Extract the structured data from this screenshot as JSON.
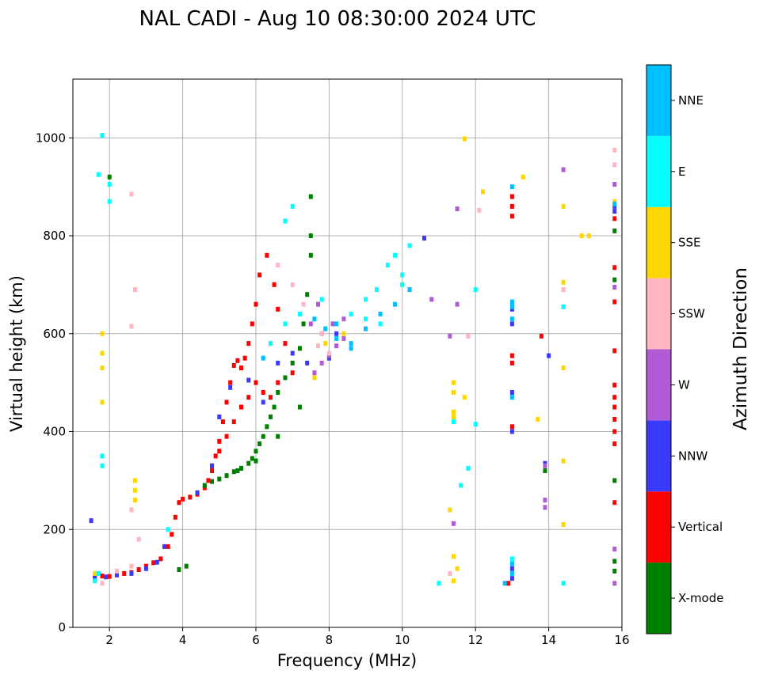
{
  "chart_data": {
    "type": "scatter",
    "title": "NAL CADI - Aug 10 08:30:00 2024 UTC",
    "xlabel": "Frequency (MHz)",
    "ylabel": "Virtual height (km)",
    "xlim": [
      1,
      16
    ],
    "ylim": [
      0,
      1120
    ],
    "xticks": [
      2,
      4,
      6,
      8,
      10,
      12,
      14,
      16
    ],
    "yticks": [
      0,
      200,
      400,
      600,
      800,
      1000
    ],
    "grid": true,
    "colorbar": {
      "label": "Azimuth Direction",
      "categories": [
        {
          "name": "X-mode",
          "color": "#008000"
        },
        {
          "name": "Vertical",
          "color": "#ff0000"
        },
        {
          "name": "NNW",
          "color": "#3a3aff"
        },
        {
          "name": "W",
          "color": "#b05ad6"
        },
        {
          "name": "SSW",
          "color": "#ffb6c1"
        },
        {
          "name": "SSE",
          "color": "#ffd700"
        },
        {
          "name": "E",
          "color": "#00ffff"
        },
        {
          "name": "NNE",
          "color": "#00bfff"
        }
      ]
    },
    "series": [
      {
        "name": "Vertical",
        "points": [
          [
            1.6,
            103
          ],
          [
            1.8,
            105
          ],
          [
            2.0,
            104
          ],
          [
            2.2,
            108
          ],
          [
            2.4,
            110
          ],
          [
            2.6,
            112
          ],
          [
            2.8,
            118
          ],
          [
            3.0,
            125
          ],
          [
            3.2,
            132
          ],
          [
            3.4,
            140
          ],
          [
            3.6,
            165
          ],
          [
            3.7,
            190
          ],
          [
            3.8,
            225
          ],
          [
            3.9,
            255
          ],
          [
            4.0,
            262
          ],
          [
            4.2,
            266
          ],
          [
            4.4,
            272
          ],
          [
            4.6,
            285
          ],
          [
            4.7,
            300
          ],
          [
            4.8,
            320
          ],
          [
            4.9,
            350
          ],
          [
            5.0,
            380
          ],
          [
            5.1,
            420
          ],
          [
            5.2,
            460
          ],
          [
            5.3,
            500
          ],
          [
            5.4,
            535
          ],
          [
            5.5,
            545
          ],
          [
            5.6,
            530
          ],
          [
            5.7,
            550
          ],
          [
            5.8,
            580
          ],
          [
            5.9,
            620
          ],
          [
            6.0,
            660
          ],
          [
            6.1,
            720
          ],
          [
            6.3,
            760
          ],
          [
            6.5,
            700
          ],
          [
            6.6,
            650
          ],
          [
            6.8,
            580
          ],
          [
            7.0,
            520
          ],
          [
            4.8,
            330
          ],
          [
            5.0,
            360
          ],
          [
            5.2,
            390
          ],
          [
            5.4,
            420
          ],
          [
            5.6,
            450
          ],
          [
            5.8,
            470
          ],
          [
            6.0,
            500
          ],
          [
            6.2,
            480
          ],
          [
            6.4,
            470
          ],
          [
            6.6,
            500
          ],
          [
            13.0,
            840
          ],
          [
            13.0,
            860
          ],
          [
            13.0,
            880
          ],
          [
            13.0,
            540
          ],
          [
            13.0,
            555
          ],
          [
            13.0,
            410
          ],
          [
            15.8,
            255
          ],
          [
            15.8,
            375
          ],
          [
            15.8,
            400
          ],
          [
            15.8,
            425
          ],
          [
            15.8,
            450
          ],
          [
            15.8,
            470
          ],
          [
            15.8,
            495
          ],
          [
            15.8,
            565
          ],
          [
            15.8,
            665
          ],
          [
            15.8,
            735
          ],
          [
            15.8,
            835
          ],
          [
            13.8,
            595
          ],
          [
            12.9,
            90
          ]
        ]
      },
      {
        "name": "X-mode",
        "points": [
          [
            4.6,
            290
          ],
          [
            4.8,
            298
          ],
          [
            5.0,
            303
          ],
          [
            5.2,
            310
          ],
          [
            5.4,
            318
          ],
          [
            5.6,
            325
          ],
          [
            5.8,
            335
          ],
          [
            5.9,
            345
          ],
          [
            6.0,
            360
          ],
          [
            6.1,
            375
          ],
          [
            6.2,
            390
          ],
          [
            6.3,
            410
          ],
          [
            6.4,
            430
          ],
          [
            6.5,
            450
          ],
          [
            6.6,
            480
          ],
          [
            6.8,
            510
          ],
          [
            7.0,
            540
          ],
          [
            7.2,
            570
          ],
          [
            7.3,
            620
          ],
          [
            7.4,
            680
          ],
          [
            7.5,
            760
          ],
          [
            7.5,
            800
          ],
          [
            7.5,
            880
          ],
          [
            5.5,
            320
          ],
          [
            6.0,
            340
          ],
          [
            6.6,
            390
          ],
          [
            7.2,
            450
          ],
          [
            13.9,
            320
          ],
          [
            15.8,
            115
          ],
          [
            15.8,
            135
          ],
          [
            15.8,
            300
          ],
          [
            15.8,
            810
          ],
          [
            15.8,
            710
          ],
          [
            2.0,
            920
          ],
          [
            3.9,
            118
          ],
          [
            4.1,
            125
          ]
        ]
      },
      {
        "name": "NNW",
        "points": [
          [
            1.6,
            100
          ],
          [
            1.9,
            103
          ],
          [
            2.2,
            107
          ],
          [
            2.6,
            110
          ],
          [
            3.0,
            120
          ],
          [
            3.3,
            133
          ],
          [
            3.5,
            165
          ],
          [
            4.4,
            275
          ],
          [
            4.8,
            330
          ],
          [
            5.0,
            430
          ],
          [
            5.3,
            490
          ],
          [
            5.8,
            505
          ],
          [
            6.2,
            460
          ],
          [
            6.6,
            540
          ],
          [
            7.0,
            560
          ],
          [
            7.4,
            540
          ],
          [
            8.0,
            550
          ],
          [
            8.2,
            600
          ],
          [
            10.6,
            795
          ],
          [
            13.0,
            400
          ],
          [
            13.0,
            620
          ],
          [
            13.0,
            650
          ],
          [
            13.0,
            480
          ],
          [
            13.0,
            100
          ],
          [
            13.0,
            120
          ],
          [
            14.0,
            555
          ],
          [
            15.8,
            850
          ],
          [
            15.8,
            860
          ],
          [
            13.9,
            335
          ],
          [
            1.5,
            218
          ]
        ]
      },
      {
        "name": "W",
        "points": [
          [
            7.6,
            520
          ],
          [
            7.8,
            540
          ],
          [
            8.0,
            555
          ],
          [
            8.2,
            575
          ],
          [
            8.4,
            590
          ],
          [
            7.8,
            600
          ],
          [
            8.1,
            620
          ],
          [
            8.4,
            630
          ],
          [
            7.5,
            620
          ],
          [
            11.3,
            595
          ],
          [
            10.8,
            670
          ],
          [
            11.5,
            660
          ],
          [
            13.9,
            245
          ],
          [
            13.9,
            260
          ],
          [
            13.9,
            330
          ],
          [
            14.4,
            935
          ],
          [
            15.8,
            905
          ],
          [
            15.8,
            695
          ],
          [
            15.8,
            90
          ],
          [
            15.8,
            160
          ],
          [
            11.4,
            212
          ],
          [
            11.5,
            855
          ],
          [
            7.2,
            640
          ],
          [
            7.7,
            660
          ]
        ]
      },
      {
        "name": "SSW",
        "points": [
          [
            1.8,
            90
          ],
          [
            2.2,
            115
          ],
          [
            2.6,
            125
          ],
          [
            2.8,
            180
          ],
          [
            2.6,
            240
          ],
          [
            2.7,
            690
          ],
          [
            2.6,
            615
          ],
          [
            2.6,
            885
          ],
          [
            6.6,
            740
          ],
          [
            7.0,
            700
          ],
          [
            7.3,
            660
          ],
          [
            7.8,
            600
          ],
          [
            8.0,
            560
          ],
          [
            11.3,
            110
          ],
          [
            11.8,
            595
          ],
          [
            12.1,
            852
          ],
          [
            15.8,
            945
          ],
          [
            15.8,
            975
          ],
          [
            14.4,
            690
          ],
          [
            7.7,
            575
          ]
        ]
      },
      {
        "name": "SSE",
        "points": [
          [
            1.6,
            110
          ],
          [
            1.8,
            530
          ],
          [
            1.8,
            560
          ],
          [
            1.8,
            600
          ],
          [
            1.8,
            460
          ],
          [
            2.7,
            300
          ],
          [
            2.7,
            280
          ],
          [
            2.7,
            260
          ],
          [
            7.6,
            510
          ],
          [
            7.9,
            580
          ],
          [
            8.4,
            600
          ],
          [
            11.3,
            240
          ],
          [
            11.4,
            145
          ],
          [
            11.4,
            440
          ],
          [
            11.4,
            500
          ],
          [
            11.4,
            480
          ],
          [
            11.4,
            430
          ],
          [
            11.7,
            470
          ],
          [
            11.7,
            998
          ],
          [
            12.2,
            890
          ],
          [
            13.3,
            920
          ],
          [
            13.7,
            425
          ],
          [
            14.4,
            860
          ],
          [
            14.4,
            340
          ],
          [
            14.4,
            530
          ],
          [
            14.4,
            705
          ],
          [
            14.4,
            210
          ],
          [
            14.9,
            800
          ],
          [
            15.1,
            800
          ],
          [
            15.8,
            870
          ],
          [
            11.5,
            120
          ],
          [
            11.4,
            95
          ]
        ]
      },
      {
        "name": "E",
        "points": [
          [
            1.6,
            95
          ],
          [
            1.7,
            110
          ],
          [
            1.8,
            330
          ],
          [
            1.8,
            350
          ],
          [
            2.0,
            905
          ],
          [
            1.7,
            925
          ],
          [
            1.8,
            1005
          ],
          [
            2.0,
            870
          ],
          [
            6.4,
            580
          ],
          [
            6.8,
            620
          ],
          [
            7.2,
            640
          ],
          [
            7.8,
            670
          ],
          [
            8.6,
            640
          ],
          [
            9.0,
            670
          ],
          [
            9.3,
            690
          ],
          [
            9.6,
            740
          ],
          [
            9.8,
            760
          ],
          [
            10.0,
            720
          ],
          [
            10.2,
            780
          ],
          [
            9.0,
            630
          ],
          [
            9.4,
            620
          ],
          [
            10.0,
            700
          ],
          [
            11.0,
            90
          ],
          [
            11.6,
            290
          ],
          [
            11.8,
            325
          ],
          [
            12.0,
            690
          ],
          [
            12.0,
            415
          ],
          [
            13.0,
            660
          ],
          [
            13.0,
            140
          ],
          [
            14.4,
            655
          ],
          [
            14.4,
            90
          ],
          [
            11.4,
            420
          ],
          [
            6.8,
            830
          ],
          [
            7.0,
            860
          ],
          [
            3.6,
            200
          ]
        ]
      },
      {
        "name": "NNE",
        "points": [
          [
            8.2,
            590
          ],
          [
            8.2,
            620
          ],
          [
            8.6,
            580
          ],
          [
            8.6,
            570
          ],
          [
            9.0,
            610
          ],
          [
            9.4,
            640
          ],
          [
            9.8,
            660
          ],
          [
            10.2,
            690
          ],
          [
            13.0,
            630
          ],
          [
            13.0,
            655
          ],
          [
            13.0,
            665
          ],
          [
            13.0,
            470
          ],
          [
            13.0,
            900
          ],
          [
            13.0,
            130
          ],
          [
            13.0,
            110
          ],
          [
            15.8,
            865
          ],
          [
            12.8,
            90
          ],
          [
            6.2,
            550
          ],
          [
            7.6,
            630
          ],
          [
            7.9,
            610
          ]
        ]
      }
    ]
  }
}
